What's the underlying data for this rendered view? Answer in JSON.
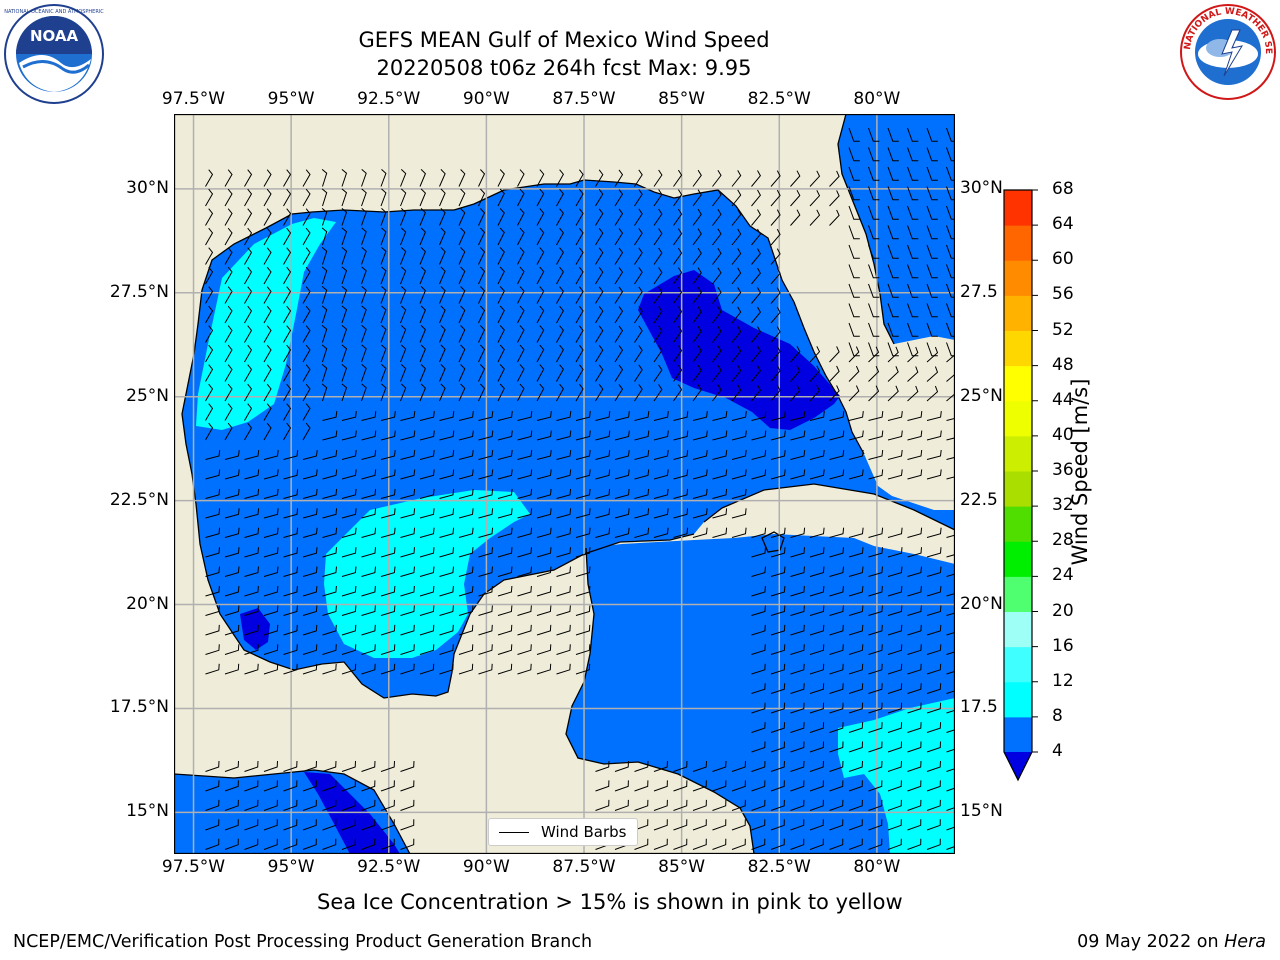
{
  "title": {
    "line1": "GEFS MEAN Gulf of Mexico Wind Speed",
    "line2": "20220508 t06z 264h fcst   Max: 9.95"
  },
  "logos": {
    "left": {
      "name": "NOAA",
      "ring_text": "NATIONAL OCEANIC AND ATMOSPHERIC ADMINISTRATION · U.S. DEPARTMENT OF COMMERCE"
    },
    "right": {
      "name": "NATIONAL WEATHER SERVICE"
    }
  },
  "map": {
    "lon_ticks": [
      "97.5°W",
      "95°W",
      "92.5°W",
      "90°W",
      "87.5°W",
      "85°W",
      "82.5°W",
      "80°W"
    ],
    "lon_values": [
      -97.5,
      -95,
      -92.5,
      -90,
      -87.5,
      -85,
      -82.5,
      -80
    ],
    "lat_ticks": [
      "30°N",
      "27.5°N",
      "25°N",
      "22.5°N",
      "20°N",
      "17.5°N",
      "15°N"
    ],
    "lat_values": [
      30,
      27.5,
      25,
      22.5,
      20,
      17.5,
      15
    ],
    "right_lat_ticks": [
      "30°N",
      "27.5",
      "25°N",
      "22.5",
      "20°N",
      "17.5",
      "15°N"
    ],
    "lon_range": [
      -98,
      -78
    ],
    "lat_range": [
      14,
      31.8
    ],
    "gridlines": true,
    "colors": {
      "land": "#efedd9",
      "speed_4_8": "#0070ff",
      "speed_8_12": "#00ffff",
      "speed_0_4": "#0000e0",
      "grid": "#b0b0b0"
    }
  },
  "legend": {
    "label": "Wind Barbs",
    "placement": "bottom-center"
  },
  "colorbar": {
    "label": "Wind Speed [m/s]",
    "ticks": [
      "4",
      "8",
      "12",
      "16",
      "20",
      "24",
      "28",
      "32",
      "36",
      "40",
      "44",
      "48",
      "52",
      "56",
      "60",
      "64",
      "68"
    ],
    "tick_values": [
      4,
      8,
      12,
      16,
      20,
      24,
      28,
      32,
      36,
      40,
      44,
      48,
      52,
      56,
      60,
      64,
      68
    ],
    "colors": [
      "#0070ff",
      "#00ffff",
      "#40ffff",
      "#9dfff5",
      "#50ff70",
      "#00ee00",
      "#50dd00",
      "#aadd00",
      "#ccee00",
      "#eeff00",
      "#ffff00",
      "#ffd700",
      "#ffb300",
      "#ff8c00",
      "#ff6600",
      "#ff3300",
      "#ff0000"
    ],
    "under_color": "#0000e0",
    "extend": "min"
  },
  "notes": {
    "sea_ice": "Sea Ice Concentration > 15% is shown in pink to yellow",
    "branch": "NCEP/EMC/Verification Post Processing Product Generation Branch",
    "date": "09 May 2022 on ",
    "host": "Hera"
  }
}
